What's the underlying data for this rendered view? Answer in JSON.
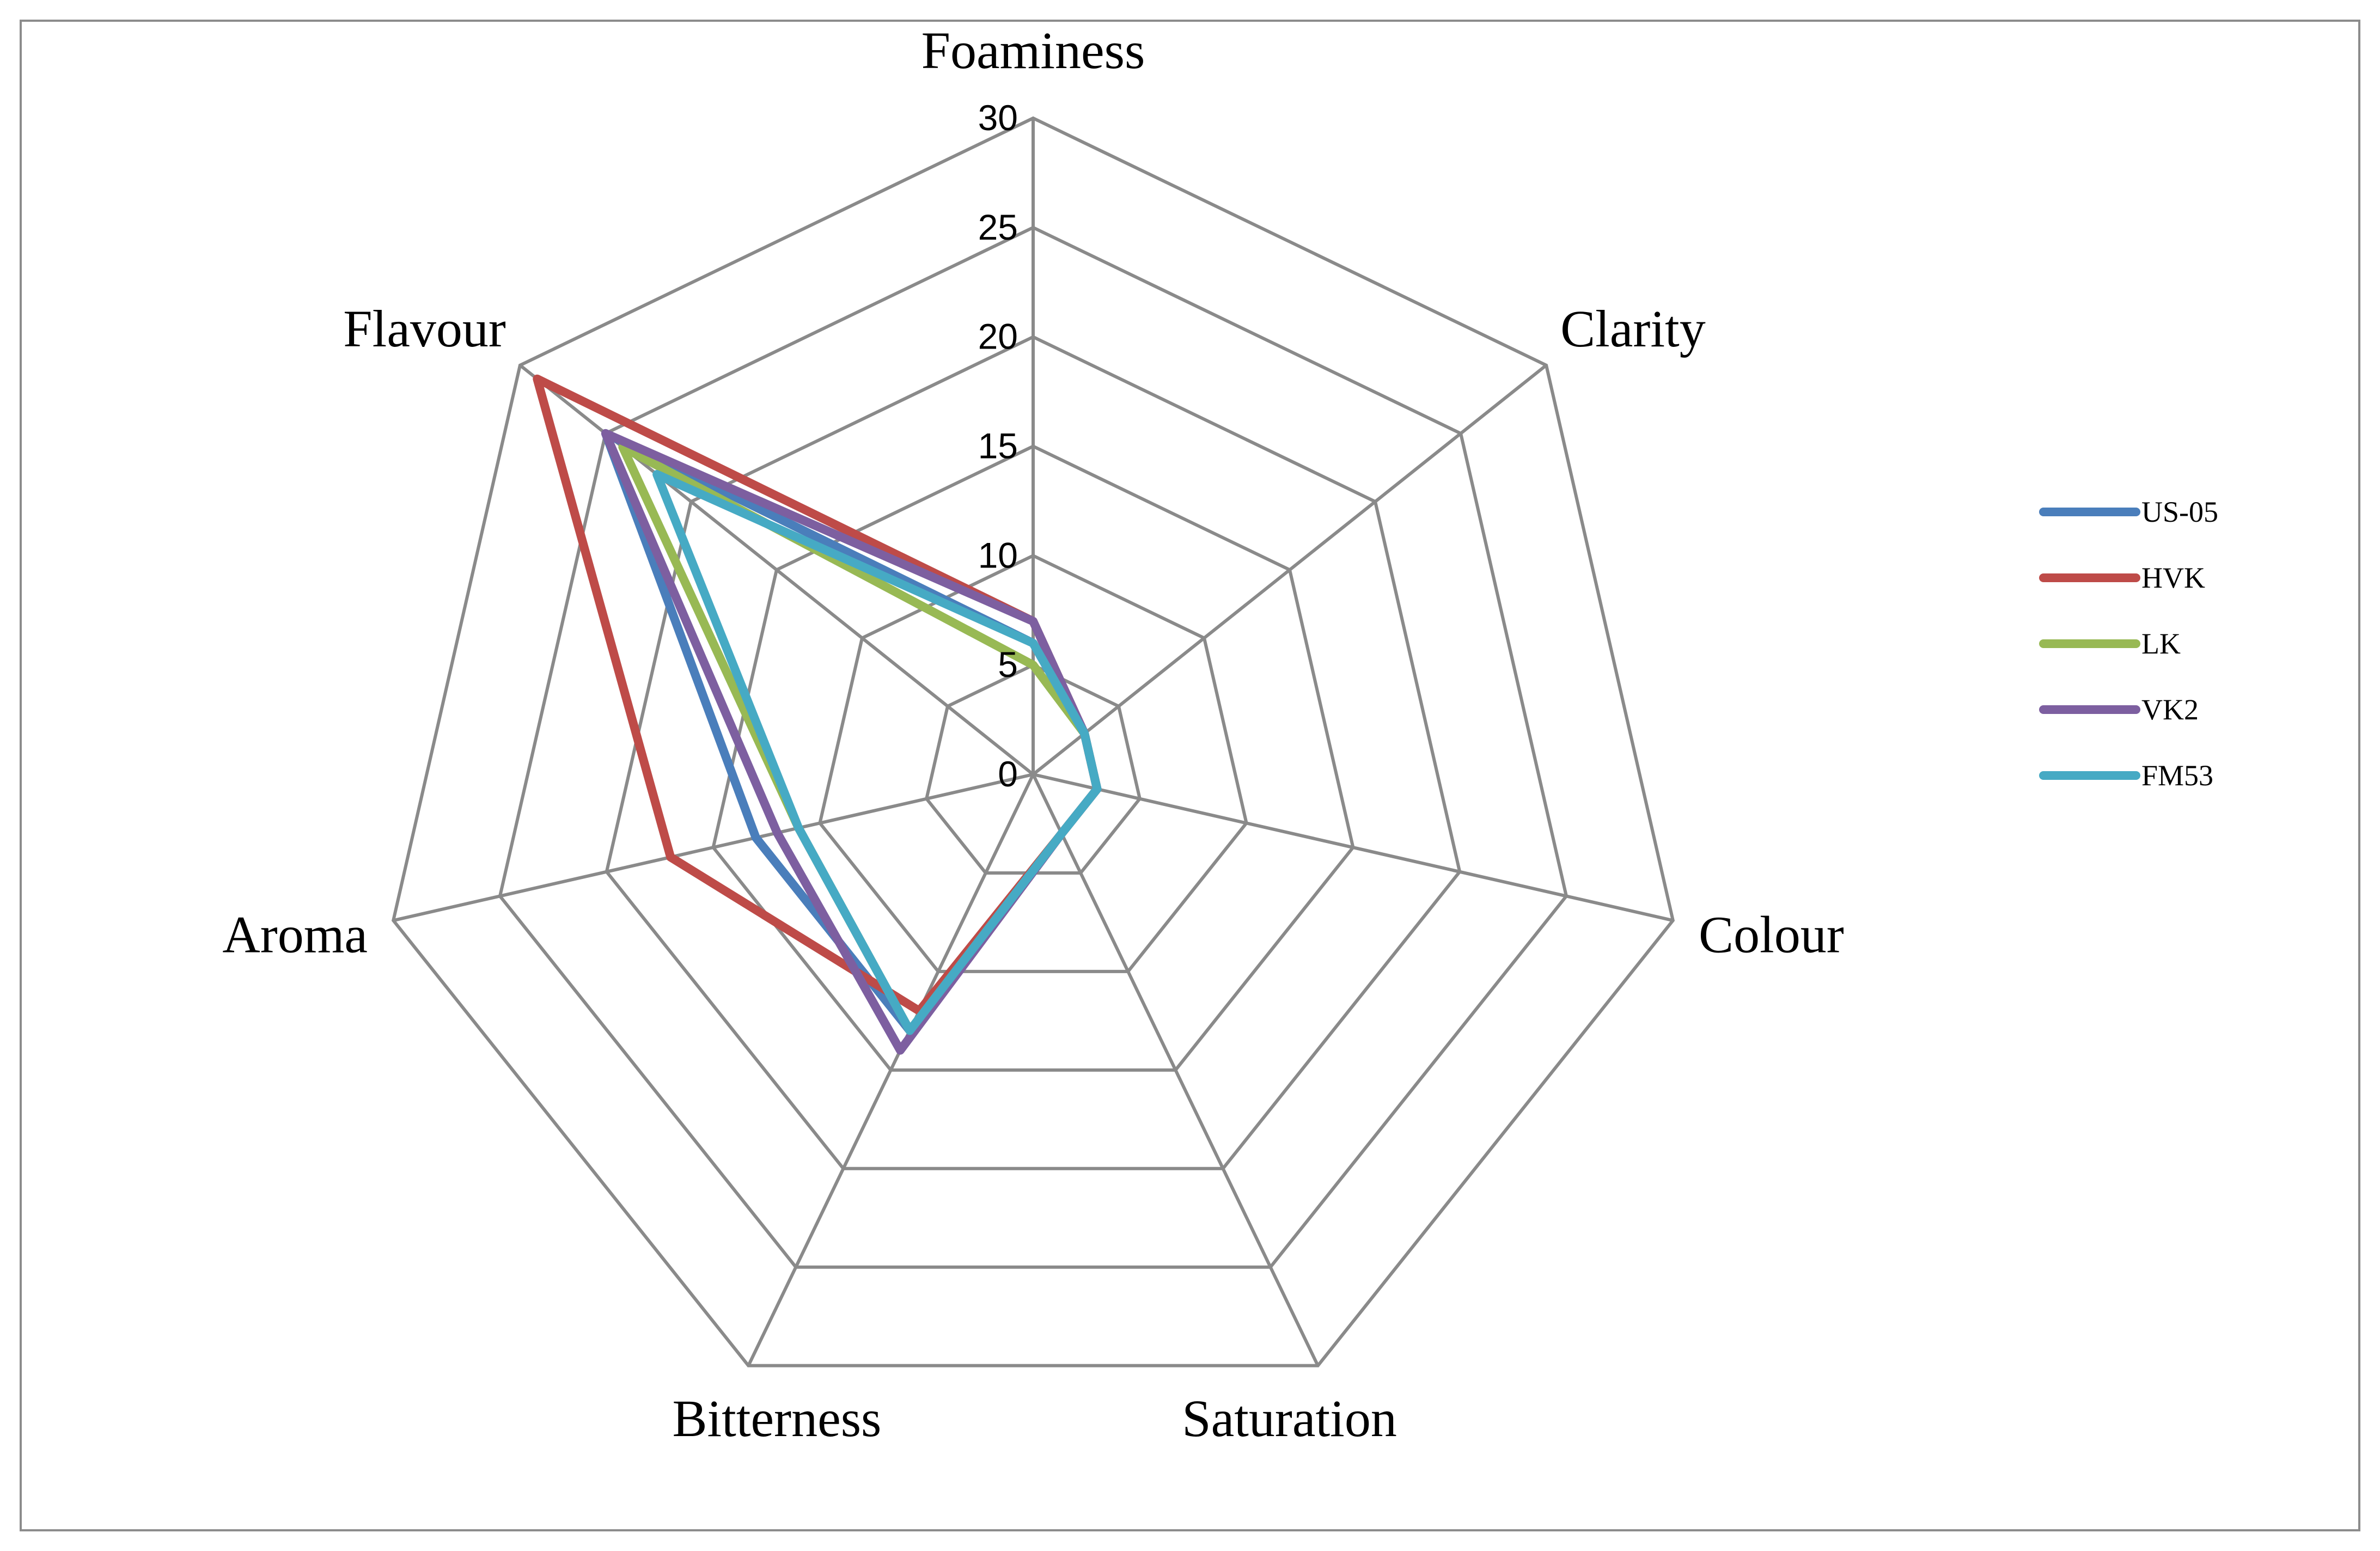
{
  "chart_data": {
    "type": "radar",
    "title": "",
    "axes": [
      "Foaminess",
      "Clarity",
      "Colour",
      "Saturation",
      "Bitterness",
      "Aroma",
      "Flavour"
    ],
    "rmin": 0,
    "rmax": 30,
    "ticks": [
      0,
      5,
      10,
      15,
      20,
      25,
      30
    ],
    "grid": true,
    "legend_position": "right",
    "series": [
      {
        "name": "US-05",
        "color": "#4a7ebb",
        "values": [
          6,
          3,
          3,
          3,
          13,
          13,
          25
        ]
      },
      {
        "name": "HVK",
        "color": "#be4b48",
        "values": [
          7,
          3,
          3,
          3,
          12,
          17,
          29
        ]
      },
      {
        "name": "LK",
        "color": "#98b954",
        "values": [
          5,
          3,
          3,
          3,
          13,
          11,
          24
        ]
      },
      {
        "name": "VK2",
        "color": "#7d5fa0",
        "values": [
          7,
          3,
          3,
          3,
          14,
          12,
          25
        ]
      },
      {
        "name": "FM53",
        "color": "#46aac4",
        "values": [
          6,
          3,
          3,
          3,
          13,
          11,
          22
        ]
      }
    ]
  }
}
